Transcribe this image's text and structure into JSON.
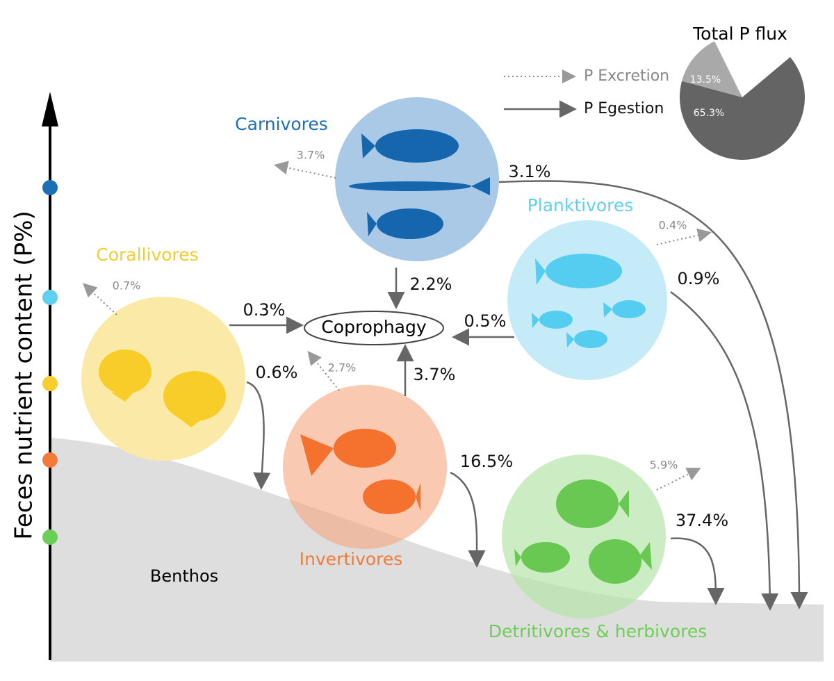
{
  "axis_label": "Feces nutrient content (P%)",
  "legend": {
    "excretion": "P Excretion",
    "egestion": "P Egestion"
  },
  "pie": {
    "title": "Total P flux",
    "values": [
      13.5,
      65.3
    ],
    "value_labels": [
      "13.5%",
      "65.3%"
    ],
    "colors": [
      "#a9a9a9",
      "#646464"
    ]
  },
  "groups": {
    "carnivores": "Carnivores",
    "planktivores": "Planktivores",
    "corallivores": "Corallivores",
    "invertivores": "Invertivores",
    "detritivores": "Detritivores & herbivores"
  },
  "hub": "Coprophagy",
  "benthos": "Benthos",
  "egestion": {
    "carnivores_coprophagy": "2.2%",
    "corallivores_coprophagy": "0.3%",
    "planktivores_coprophagy": "0.5%",
    "invertivores_coprophagy": "3.7%",
    "corallivores_benthos": "0.6%",
    "invertivores_benthos": "16.5%",
    "detritivores_benthos": "37.4%",
    "carnivores_benthos": "3.1%",
    "planktivores_benthos": "0.9%"
  },
  "excretion": {
    "carnivores": "3.7%",
    "planktivores": "0.4%",
    "corallivores": "0.7%",
    "invertivores": "2.7%",
    "detritivores": "5.9%"
  }
}
